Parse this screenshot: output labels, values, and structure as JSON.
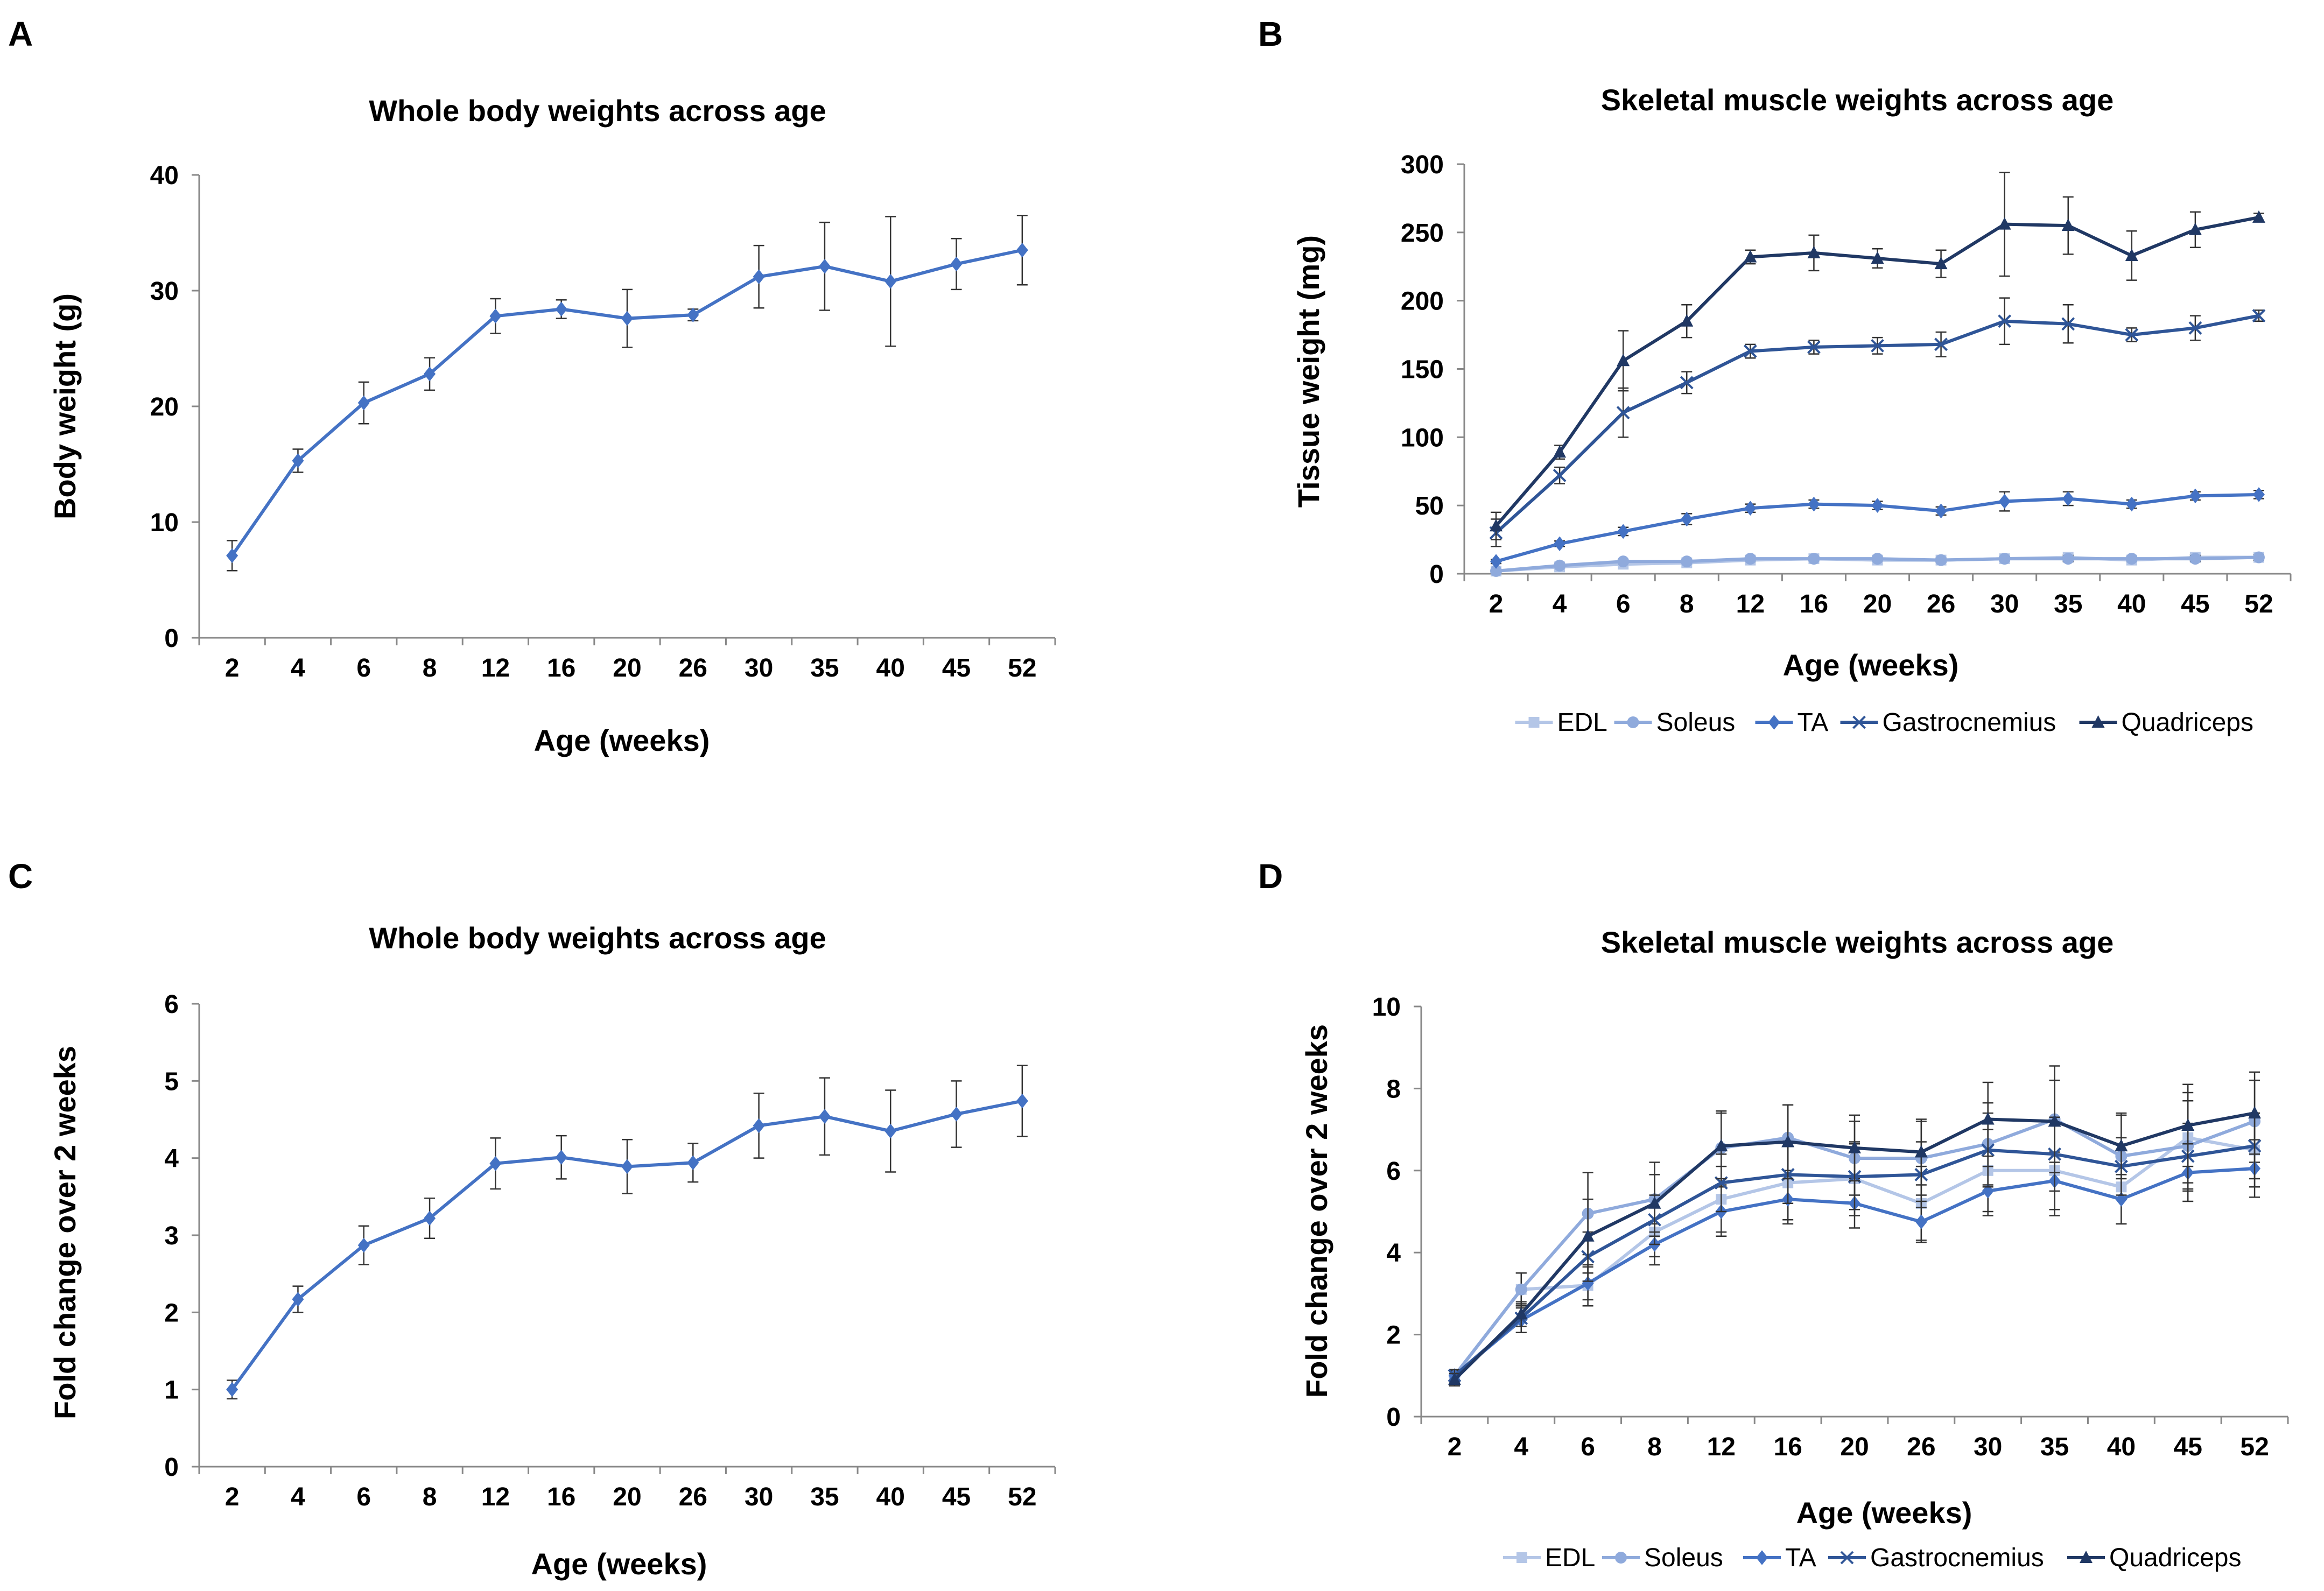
{
  "colors": {
    "EDL": "#b4c6e7",
    "Soleus": "#8faadc",
    "TA": "#4472c4",
    "Gastrocnemius": "#2f5597",
    "Quadriceps": "#203864",
    "body": "#4472c4",
    "errorbar": "#333333"
  },
  "chart_data": [
    {
      "panel": "A",
      "type": "line",
      "title": "Whole body weights across age",
      "xlabel": "Age (weeks)",
      "ylabel": "Body weight (g)",
      "categories": [
        "2",
        "4",
        "6",
        "8",
        "12",
        "16",
        "20",
        "26",
        "30",
        "35",
        "40",
        "45",
        "52"
      ],
      "ylim": [
        0,
        40
      ],
      "yticks": [
        0,
        10,
        20,
        30,
        40
      ],
      "grid": false,
      "legend": null,
      "series": [
        {
          "name": "Body weight",
          "marker": "diamond",
          "color": "#4472c4",
          "values": [
            7.1,
            15.3,
            20.3,
            22.8,
            27.8,
            28.4,
            27.6,
            27.9,
            31.2,
            32.1,
            30.8,
            32.3,
            33.5
          ],
          "errors": [
            1.3,
            1.0,
            1.8,
            1.4,
            1.5,
            0.8,
            2.5,
            0.5,
            2.7,
            3.8,
            5.6,
            2.2,
            3.0
          ]
        }
      ]
    },
    {
      "panel": "B",
      "type": "line",
      "title": "Skeletal muscle weights across age",
      "xlabel": "Age (weeks)",
      "ylabel": "Tissue weight (mg)",
      "categories": [
        "2",
        "4",
        "6",
        "8",
        "12",
        "16",
        "20",
        "26",
        "30",
        "35",
        "40",
        "45",
        "52"
      ],
      "ylim": [
        0,
        300
      ],
      "yticks": [
        0,
        50,
        100,
        150,
        200,
        250,
        300
      ],
      "grid": false,
      "legend": "bottom",
      "series": [
        {
          "name": "EDL",
          "marker": "square",
          "color": "#b4c6e7",
          "values": [
            2,
            5,
            7,
            8,
            10,
            11,
            10,
            10,
            11,
            12,
            10,
            12,
            12
          ],
          "errors": [
            0.5,
            1,
            1,
            1,
            1.5,
            1.5,
            1.5,
            1.5,
            1.5,
            2,
            1.5,
            2,
            2
          ]
        },
        {
          "name": "Soleus",
          "marker": "circle",
          "color": "#8faadc",
          "values": [
            2,
            6,
            9,
            9,
            11,
            11,
            11,
            10,
            11,
            11,
            11,
            11,
            12
          ],
          "errors": [
            0.5,
            1,
            1,
            1,
            1.5,
            1.5,
            1.5,
            1.5,
            1.5,
            2,
            1.5,
            2,
            2
          ]
        },
        {
          "name": "TA",
          "marker": "diamond",
          "color": "#4472c4",
          "values": [
            9,
            22,
            31,
            40,
            48,
            51,
            50,
            46,
            53,
            55,
            51,
            57,
            58
          ],
          "errors": [
            1.5,
            2,
            3,
            4,
            3,
            3,
            3,
            3,
            7,
            5,
            3,
            3,
            3
          ]
        },
        {
          "name": "Gastrocnemius",
          "marker": "x",
          "color": "#2f5597",
          "values": [
            30,
            72,
            118,
            140,
            163,
            166,
            167,
            168,
            185,
            183,
            175,
            180,
            189
          ],
          "errors": [
            10,
            6,
            18,
            8,
            5,
            5,
            6,
            9,
            17,
            14,
            5,
            9,
            4
          ]
        },
        {
          "name": "Quadriceps",
          "marker": "triangle",
          "color": "#203864",
          "values": [
            35,
            89,
            156,
            185,
            232,
            235,
            231,
            227,
            256,
            255,
            233,
            252,
            261
          ],
          "errors": [
            10,
            5,
            22,
            12,
            5,
            13,
            7,
            10,
            38,
            21,
            18,
            13,
            3
          ]
        }
      ]
    },
    {
      "panel": "C",
      "type": "line",
      "title": "Whole body weights across age",
      "xlabel": "Age (weeks)",
      "ylabel": "Fold change over 2 weeks",
      "categories": [
        "2",
        "4",
        "6",
        "8",
        "12",
        "16",
        "20",
        "26",
        "30",
        "35",
        "40",
        "45",
        "52"
      ],
      "ylim": [
        0,
        6
      ],
      "yticks": [
        0,
        1,
        2,
        3,
        4,
        5,
        6
      ],
      "grid": false,
      "legend": null,
      "series": [
        {
          "name": "Body weight",
          "marker": "diamond",
          "color": "#4472c4",
          "values": [
            1.0,
            2.17,
            2.87,
            3.22,
            3.93,
            4.01,
            3.89,
            3.94,
            4.42,
            4.54,
            4.35,
            4.57,
            4.74
          ],
          "errors": [
            0.12,
            0.17,
            0.25,
            0.26,
            0.33,
            0.28,
            0.35,
            0.25,
            0.42,
            0.5,
            0.53,
            0.43,
            0.46
          ]
        }
      ]
    },
    {
      "panel": "D",
      "type": "line",
      "title": "Skeletal muscle weights across age",
      "xlabel": "Age (weeks)",
      "ylabel": "Fold change over 2 weeks",
      "categories": [
        "2",
        "4",
        "6",
        "8",
        "12",
        "16",
        "20",
        "26",
        "30",
        "35",
        "40",
        "45",
        "52"
      ],
      "ylim": [
        0,
        10
      ],
      "yticks": [
        0,
        2,
        4,
        6,
        8,
        10
      ],
      "grid": false,
      "legend": "bottom",
      "series": [
        {
          "name": "EDL",
          "marker": "square",
          "color": "#b4c6e7",
          "values": [
            1.0,
            3.1,
            3.2,
            4.5,
            5.3,
            5.7,
            5.8,
            5.2,
            6.0,
            6.0,
            5.6,
            6.8,
            6.5
          ],
          "errors": [
            0.15,
            0.4,
            0.5,
            0.6,
            0.8,
            0.9,
            0.9,
            0.9,
            1.0,
            1.1,
            0.9,
            1.1,
            0.9
          ]
        },
        {
          "name": "Soleus",
          "marker": "circle",
          "color": "#8faadc",
          "values": [
            1.0,
            3.1,
            4.95,
            5.3,
            6.55,
            6.8,
            6.3,
            6.3,
            6.65,
            7.25,
            6.35,
            6.6,
            7.2
          ],
          "errors": [
            0.15,
            0.4,
            1.0,
            0.9,
            0.9,
            0.8,
            0.9,
            0.9,
            1.0,
            1.3,
            1.0,
            1.1,
            1.0
          ]
        },
        {
          "name": "TA",
          "marker": "diamond",
          "color": "#4472c4",
          "values": [
            1.0,
            2.35,
            3.25,
            4.2,
            5.0,
            5.3,
            5.2,
            4.75,
            5.5,
            5.75,
            5.3,
            5.95,
            6.05
          ],
          "errors": [
            0.12,
            0.3,
            0.4,
            0.5,
            0.6,
            0.6,
            0.6,
            0.5,
            0.6,
            0.7,
            0.6,
            0.7,
            0.7
          ]
        },
        {
          "name": "Gastrocnemius",
          "marker": "x",
          "color": "#2f5597",
          "values": [
            1.0,
            2.4,
            3.9,
            4.8,
            5.7,
            5.9,
            5.85,
            5.9,
            6.5,
            6.4,
            6.1,
            6.35,
            6.6
          ],
          "errors": [
            0.15,
            0.35,
            0.6,
            0.6,
            0.7,
            0.7,
            0.8,
            0.8,
            0.9,
            0.9,
            0.7,
            0.8,
            0.8
          ]
        },
        {
          "name": "Quadriceps",
          "marker": "triangle",
          "color": "#203864",
          "values": [
            0.9,
            2.5,
            4.4,
            5.2,
            6.6,
            6.7,
            6.55,
            6.45,
            7.25,
            7.2,
            6.6,
            7.1,
            7.4
          ],
          "errors": [
            0.15,
            0.3,
            0.9,
            0.7,
            0.8,
            0.9,
            0.8,
            0.8,
            0.9,
            1.0,
            0.8,
            1.0,
            1.0
          ]
        }
      ]
    }
  ]
}
